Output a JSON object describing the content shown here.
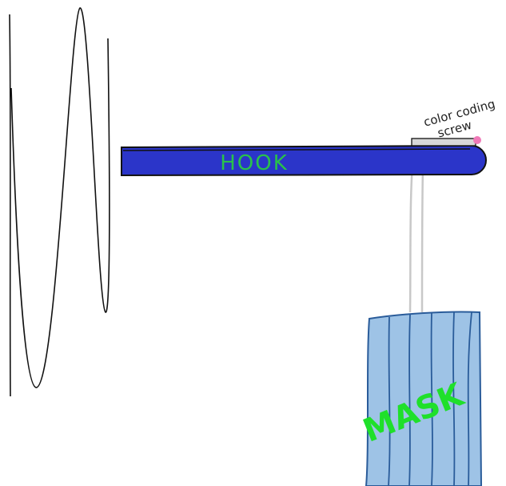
{
  "hook": {
    "label": "HOOK"
  },
  "mask": {
    "label": "MASK"
  },
  "screw": {
    "label_lines": [
      "color coding",
      "screw"
    ]
  }
}
